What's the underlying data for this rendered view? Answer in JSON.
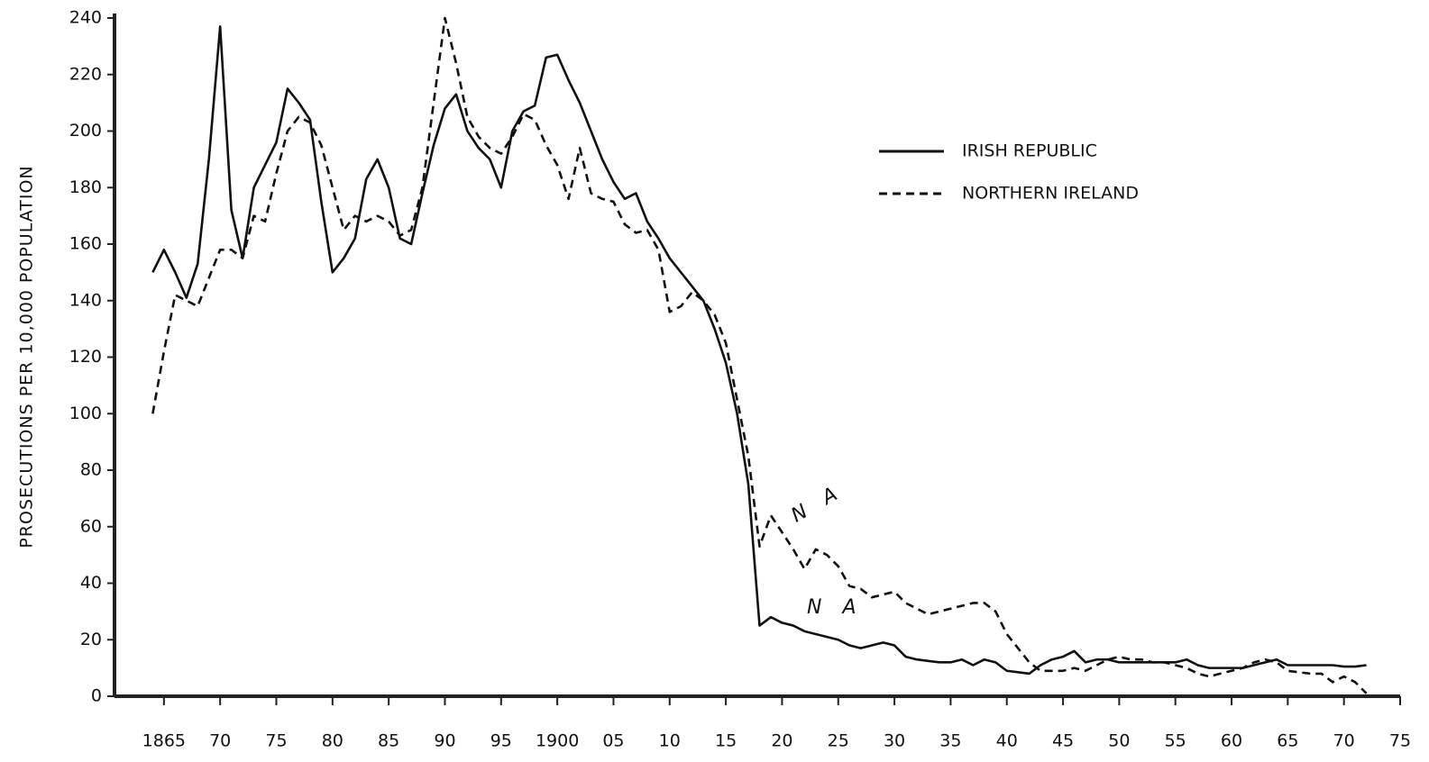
{
  "chart_data": {
    "type": "line",
    "y_label": "PROSECUTIONS PER 10,000 POPULATION",
    "annotations": [
      "N A",
      "N A"
    ],
    "x": [
      1864,
      1865,
      1866,
      1867,
      1868,
      1869,
      1870,
      1871,
      1872,
      1873,
      1874,
      1875,
      1876,
      1877,
      1878,
      1879,
      1880,
      1881,
      1882,
      1883,
      1884,
      1885,
      1886,
      1887,
      1888,
      1889,
      1890,
      1891,
      1892,
      1893,
      1894,
      1895,
      1896,
      1897,
      1898,
      1899,
      1900,
      1901,
      1902,
      1903,
      1904,
      1905,
      1906,
      1907,
      1908,
      1909,
      1910,
      1911,
      1912,
      1913,
      1914,
      1915,
      1916,
      1917,
      1918,
      1919,
      1920,
      1921,
      1922,
      1923,
      1924,
      1925,
      1926,
      1927,
      1928,
      1929,
      1930,
      1931,
      1932,
      1933,
      1934,
      1935,
      1936,
      1937,
      1938,
      1939,
      1940,
      1941,
      1942,
      1943,
      1944,
      1945,
      1946,
      1947,
      1948,
      1949,
      1950,
      1951,
      1952,
      1953,
      1954,
      1955,
      1956,
      1957,
      1958,
      1959,
      1960,
      1961,
      1962,
      1963,
      1964,
      1965,
      1966,
      1967,
      1968,
      1969,
      1970,
      1971,
      1972
    ],
    "series": [
      {
        "name": "IRISH REPUBLIC",
        "color": "#111111",
        "dash": "solid",
        "values": [
          150,
          158,
          150,
          141,
          153,
          190,
          237,
          172,
          155,
          180,
          188,
          196,
          215,
          210,
          204,
          175,
          150,
          155,
          162,
          183,
          190,
          180,
          162,
          160,
          178,
          195,
          208,
          213,
          200,
          194,
          190,
          180,
          200,
          207,
          209,
          226,
          227,
          218,
          210,
          200,
          190,
          182,
          176,
          178,
          168,
          162,
          155,
          150,
          145,
          140,
          130,
          118,
          100,
          75,
          25,
          28,
          26,
          25,
          23,
          22,
          21,
          20,
          18,
          17,
          18,
          19,
          18,
          14,
          13,
          12.5,
          12,
          12,
          13,
          11,
          13,
          12,
          9,
          8.5,
          8,
          11,
          13,
          14,
          16,
          12,
          13,
          13,
          12,
          12,
          12,
          12,
          12,
          12,
          13,
          11,
          10,
          10,
          10,
          10,
          11,
          12,
          13,
          11,
          11,
          11,
          11,
          11,
          10.5,
          10.5,
          11
        ]
      },
      {
        "name": "NORTHERN IRELAND",
        "color": "#111111",
        "dash": "dashed",
        "values": [
          100,
          122,
          142,
          140,
          138,
          148,
          158,
          158,
          155,
          170,
          168,
          185,
          200,
          205,
          203,
          195,
          180,
          165,
          170,
          168,
          170,
          168,
          163,
          165,
          180,
          210,
          240,
          224,
          205,
          198,
          194,
          192,
          198,
          206,
          204,
          195,
          188,
          176,
          194,
          178,
          176,
          175,
          167,
          164,
          165,
          158,
          136,
          138,
          143,
          140,
          135,
          125,
          105,
          85,
          53,
          64,
          58,
          52,
          45,
          52,
          50,
          46,
          39,
          38,
          35,
          36,
          37,
          33,
          31,
          29,
          30,
          31,
          32,
          33,
          33,
          30,
          22,
          17,
          12,
          9,
          9,
          9,
          10,
          9,
          11,
          13,
          14,
          13,
          13,
          12,
          12,
          11,
          10,
          8,
          7,
          8,
          9,
          10,
          12,
          13,
          12,
          9,
          8.5,
          8,
          8,
          5,
          7,
          5,
          1
        ]
      }
    ],
    "xlim": [
      1860.6,
      1975
    ],
    "xticks": [
      1865,
      {
        "value": 1870,
        "label": "70"
      },
      {
        "value": 1875,
        "label": "75"
      },
      {
        "value": 1880,
        "label": "80"
      },
      {
        "value": 1885,
        "label": "85"
      },
      {
        "value": 1890,
        "label": "90"
      },
      {
        "value": 1895,
        "label": "95"
      },
      1900,
      {
        "value": 1905,
        "label": "05"
      },
      {
        "value": 1910,
        "label": "10"
      },
      {
        "value": 1915,
        "label": "15"
      },
      {
        "value": 1920,
        "label": "20"
      },
      {
        "value": 1925,
        "label": "25"
      },
      {
        "value": 1930,
        "label": "30"
      },
      {
        "value": 1935,
        "label": "35"
      },
      {
        "value": 1940,
        "label": "40"
      },
      {
        "value": 1945,
        "label": "45"
      },
      {
        "value": 1950,
        "label": "50"
      },
      {
        "value": 1955,
        "label": "55"
      },
      {
        "value": 1960,
        "label": "60"
      },
      {
        "value": 1965,
        "label": "65"
      },
      {
        "value": 1970,
        "label": "70"
      },
      {
        "value": 1975,
        "label": "75"
      }
    ],
    "ylim": [
      0,
      240
    ],
    "yticks": [
      0,
      20,
      40,
      60,
      80,
      100,
      120,
      140,
      160,
      180,
      200,
      220,
      240
    ],
    "grid": false,
    "legend": "top-right"
  }
}
